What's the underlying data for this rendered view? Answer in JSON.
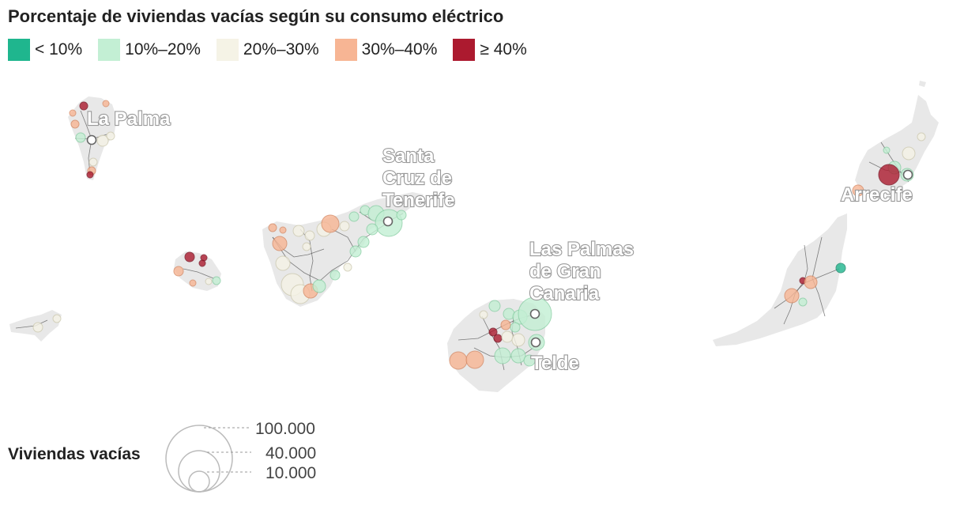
{
  "title": "Porcentaje de viviendas vacías según su consumo eléctrico",
  "legend": [
    {
      "label": "< 10%",
      "color": "#1fb68e"
    },
    {
      "label": "10%–20%",
      "color": "#c3efd4"
    },
    {
      "label": "20%–30%",
      "color": "#f5f3e6"
    },
    {
      "label": "30%–40%",
      "color": "#f7b594"
    },
    {
      "label": "≥ 40%",
      "color": "#ac1a2f"
    }
  ],
  "cities": {
    "la_palma": "La Palma",
    "santa_cruz_1": "Santa",
    "santa_cruz_2": "Cruz de",
    "santa_cruz_3": "Tenerife",
    "las_palmas_1": "Las Palmas",
    "las_palmas_2": "de Gran",
    "las_palmas_3": "Canaria",
    "telde": "Telde",
    "arrecife": "Arrecife"
  },
  "size_legend": {
    "title": "Viviendas vacías",
    "values": [
      "100.000",
      "40.000",
      "10.000"
    ]
  }
}
